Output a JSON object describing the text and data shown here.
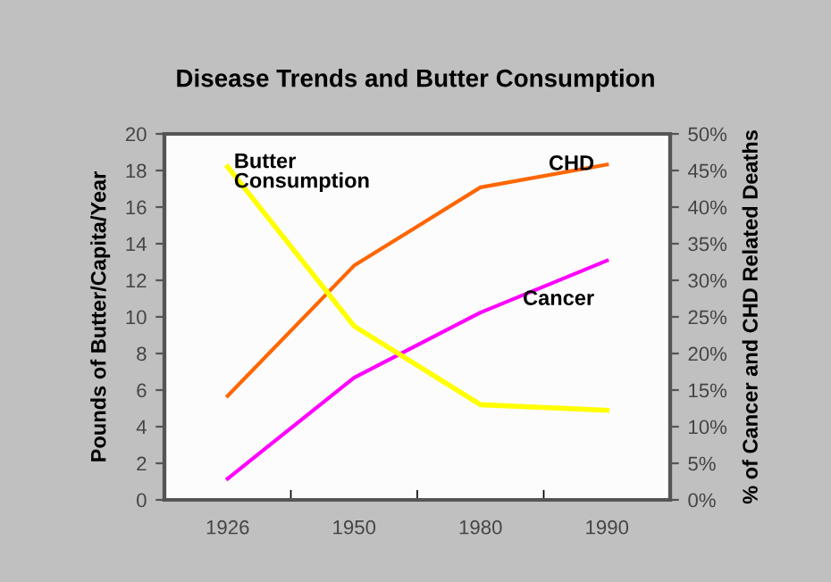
{
  "chart_data": {
    "type": "line",
    "title": "Disease Trends and Butter Consumption",
    "ylabel": "Pounds of Butter/Capita/Year",
    "y2label": "% of Cancer and CHD Related Deaths",
    "categories": [
      "1926",
      "1950",
      "1980",
      "1990"
    ],
    "series": [
      {
        "name": "Butter Consumption",
        "color": "#ffff00",
        "values": [
          18.2,
          9.5,
          5.2,
          4.9
        ]
      },
      {
        "name": "CHD",
        "color": "#ff6600",
        "axis": "y2",
        "values": [
          14.2,
          32,
          42.7,
          45.8
        ]
      },
      {
        "name": "Cancer",
        "color": "#ff00ff",
        "axis": "y2",
        "values": [
          2.9,
          16.7,
          25.6,
          32.7
        ]
      }
    ],
    "ylim": [
      0,
      20
    ],
    "yticks": [
      0,
      2,
      4,
      6,
      8,
      10,
      12,
      14,
      16,
      18,
      20
    ],
    "y2lim": [
      0,
      50
    ],
    "y2ticks": [
      {
        "value": 0,
        "label": "0%"
      },
      {
        "value": 5,
        "label": "5%"
      },
      {
        "value": 10,
        "label": "10%"
      },
      {
        "value": 15,
        "label": "15%"
      },
      {
        "value": 20,
        "label": "20%"
      },
      {
        "value": 25,
        "label": "25%"
      },
      {
        "value": 30,
        "label": "30%"
      },
      {
        "value": 35,
        "label": "35%"
      },
      {
        "value": 40,
        "label": "40%"
      },
      {
        "value": 45,
        "label": "45%"
      },
      {
        "value": 50,
        "label": "50%"
      }
    ],
    "grid": false,
    "legend": false,
    "marker": "none",
    "line_style": "solid"
  }
}
